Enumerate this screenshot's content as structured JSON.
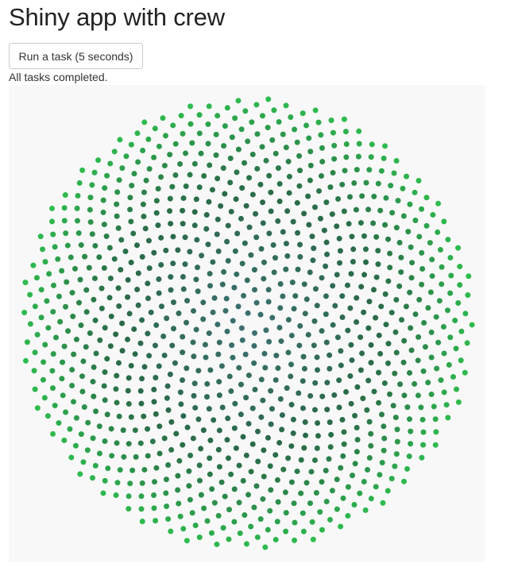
{
  "app": {
    "title": "Shiny app with crew"
  },
  "controls": {
    "run_label": "Run a task (5 seconds)"
  },
  "status": {
    "text": "All tasks completed."
  },
  "plot": {
    "background": "#f8f8f8",
    "description_type": "phyllotaxis scatter",
    "colors": {
      "center": "#3e6f74",
      "middle": "#2a6a48",
      "outer": "#2ebd4e"
    }
  },
  "chart_data": {
    "type": "scatter",
    "pattern": "phyllotaxis",
    "point_count": 1000,
    "divergence_angle_degrees": 137.508,
    "xlabel": "",
    "ylabel": "",
    "grid": false,
    "legend": "none"
  }
}
